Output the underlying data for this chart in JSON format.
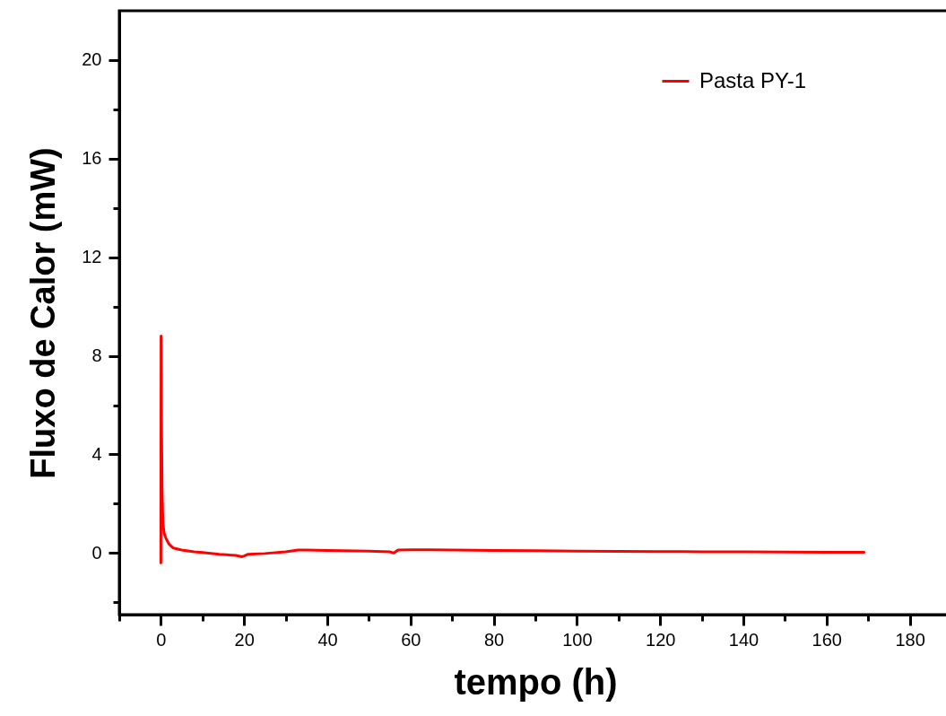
{
  "chart_data": {
    "type": "line",
    "xlabel": "tempo (h)",
    "ylabel": "Fluxo de Calor (mW)",
    "xlim": [
      -10,
      190
    ],
    "ylim": [
      -2.5,
      22
    ],
    "xticks": [
      {
        "value": -10,
        "label": null
      },
      0,
      {
        "value": 10,
        "label": null
      },
      20,
      {
        "value": 30,
        "label": null
      },
      40,
      {
        "value": 50,
        "label": null
      },
      60,
      {
        "value": 70,
        "label": null
      },
      80,
      {
        "value": 90,
        "label": null
      },
      100,
      {
        "value": 110,
        "label": null
      },
      120,
      {
        "value": 130,
        "label": null
      },
      140,
      {
        "value": 150,
        "label": null
      },
      160,
      {
        "value": 170,
        "label": null
      },
      180
    ],
    "yticks": [
      {
        "value": -2,
        "label": null
      },
      0,
      {
        "value": 2,
        "label": null
      },
      4,
      {
        "value": 6,
        "label": null
      },
      8,
      {
        "value": 10,
        "label": null
      },
      12,
      {
        "value": 14,
        "label": null
      },
      16,
      {
        "value": 18,
        "label": null
      },
      20
    ],
    "legend": "top right",
    "grid": false,
    "line_style": "solid",
    "series": [
      {
        "name": "Pasta PY-1",
        "color": "#ff0000",
        "x": [
          0,
          0.05,
          0.15,
          0.3,
          0.5,
          0.8,
          1.2,
          2,
          3,
          5,
          8,
          10,
          14,
          18,
          19.5,
          20,
          21,
          25,
          30,
          33,
          35,
          40,
          50,
          55,
          56,
          57,
          60,
          65,
          70,
          80,
          90,
          100,
          110,
          120,
          130,
          140,
          150,
          160,
          169
        ],
        "values": [
          -0.4,
          8.8,
          5.5,
          2.5,
          1.2,
          0.8,
          0.6,
          0.35,
          0.2,
          0.12,
          0.05,
          0.02,
          -0.05,
          -0.1,
          -0.15,
          -0.12,
          -0.05,
          -0.02,
          0.05,
          0.12,
          0.12,
          0.1,
          0.08,
          0.05,
          0.0,
          0.12,
          0.13,
          0.13,
          0.12,
          0.1,
          0.09,
          0.08,
          0.07,
          0.06,
          0.05,
          0.05,
          0.04,
          0.03,
          0.03
        ]
      }
    ]
  }
}
